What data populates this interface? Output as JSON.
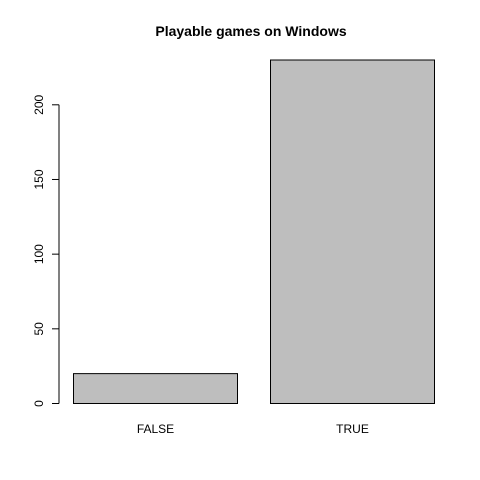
{
  "chart_data": {
    "type": "bar",
    "title": "Playable games on Windows",
    "categories": [
      "FALSE",
      "TRUE"
    ],
    "values": [
      20,
      230
    ],
    "xlabel": "",
    "ylabel": "",
    "ylim": [
      0,
      230
    ],
    "yticks": [
      0,
      50,
      100,
      150,
      200
    ],
    "ytick_labels": [
      "0",
      "50",
      "100",
      "150",
      "200"
    ],
    "grid": false,
    "bar_color": "#bebebe",
    "bar_edge_color": "#000000"
  }
}
